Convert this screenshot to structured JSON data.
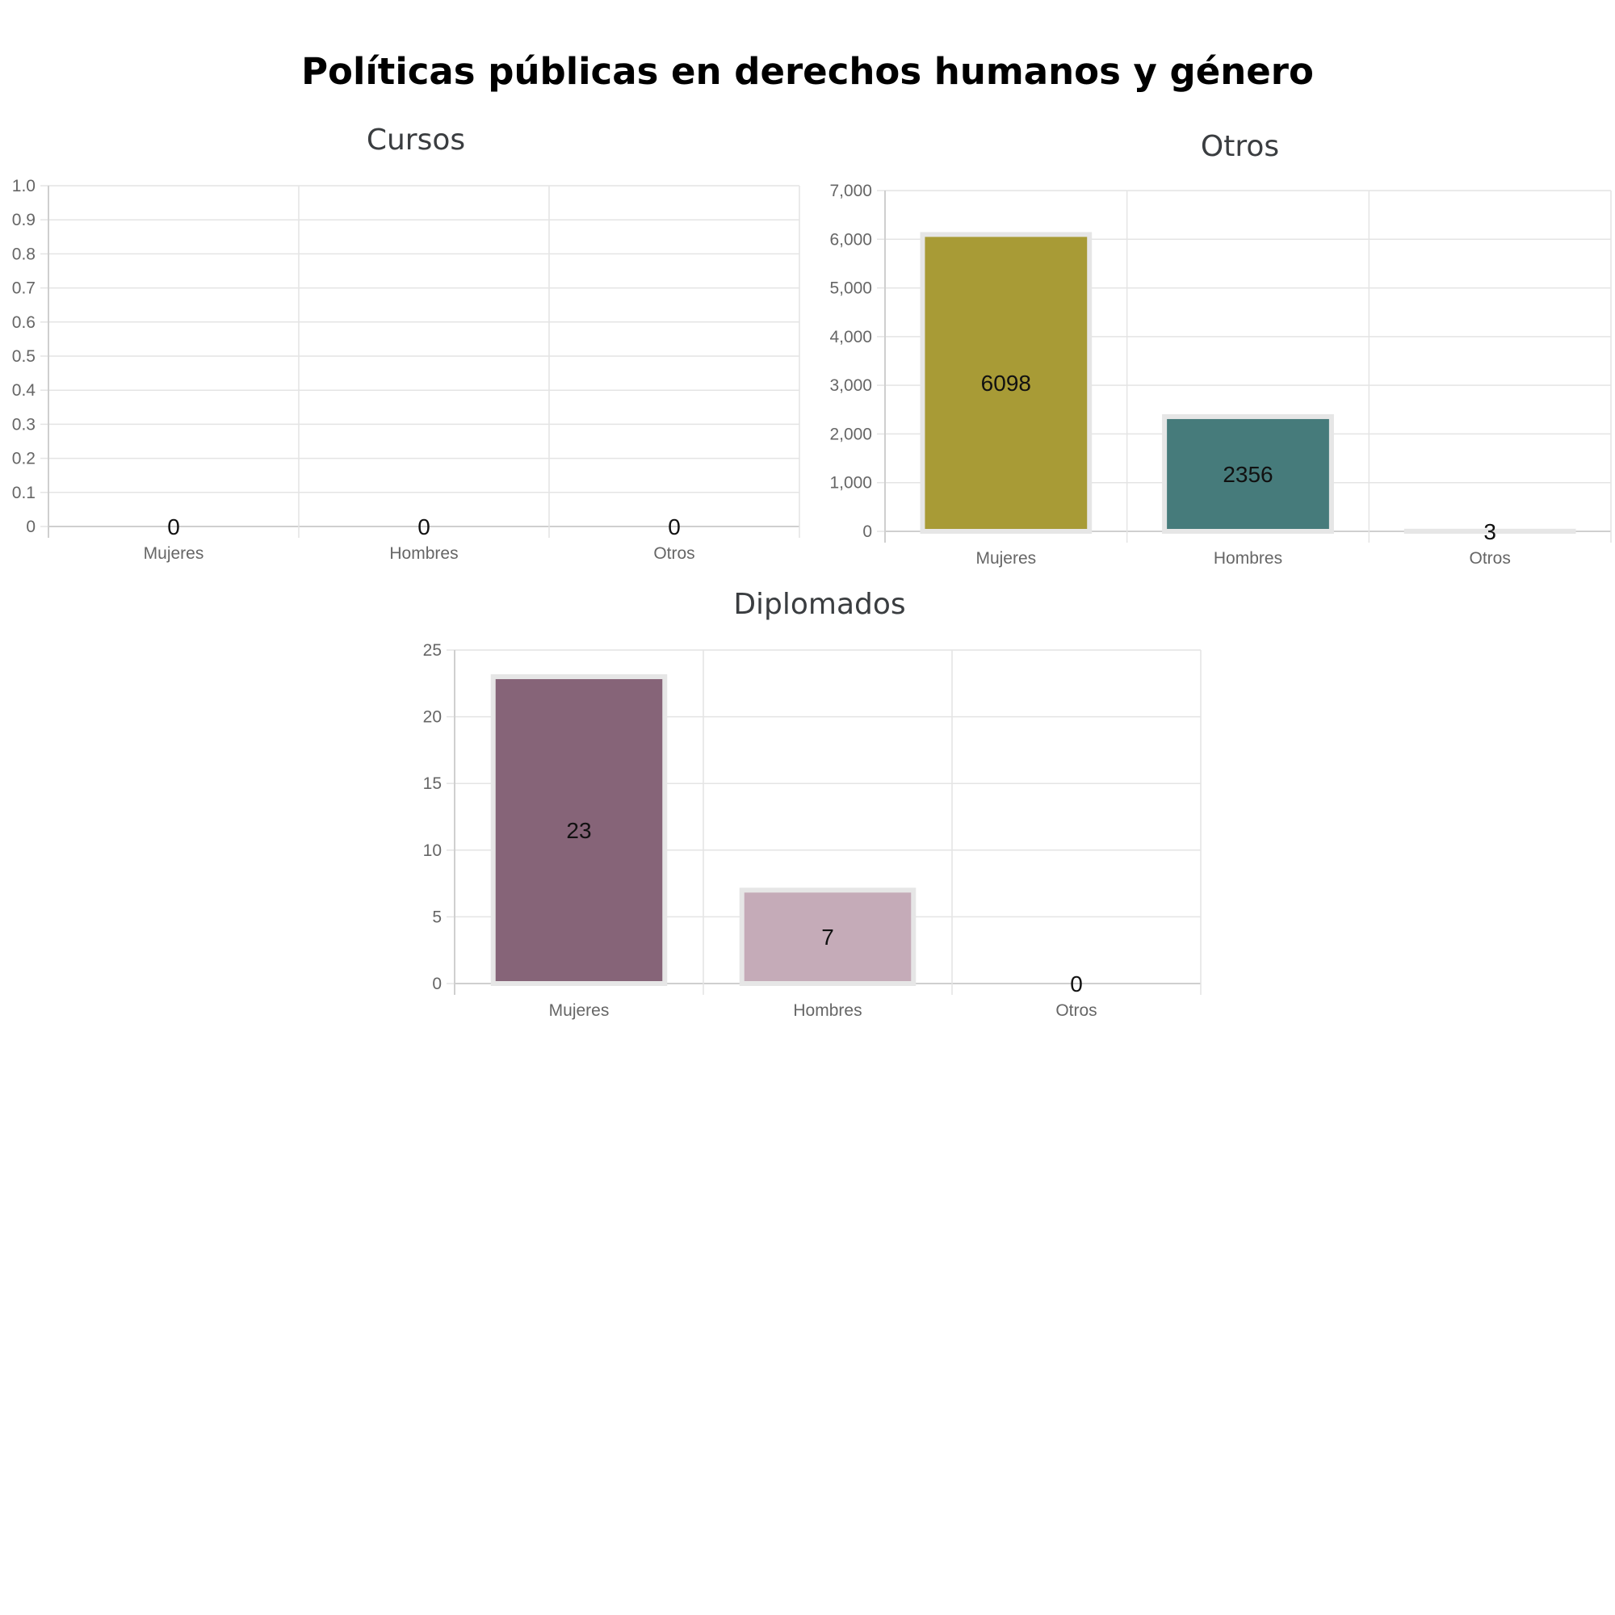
{
  "page": {
    "title": "Políticas públicas en derechos humanos y género"
  },
  "chart_data": [
    {
      "type": "bar",
      "title": "Cursos",
      "categories": [
        "Mujeres",
        "Hombres",
        "Otros"
      ],
      "values": [
        0,
        0,
        0
      ],
      "ylim": [
        0,
        1
      ],
      "yticks": [
        0,
        0.1,
        0.2,
        0.3,
        0.4,
        0.5,
        0.6,
        0.7,
        0.8,
        0.9,
        1.0
      ],
      "ytick_labels": [
        "0",
        "0.1",
        "0.2",
        "0.3",
        "0.4",
        "0.5",
        "0.6",
        "0.7",
        "0.8",
        "0.9",
        "1.0"
      ],
      "data_labels": [
        "0",
        "0",
        "0"
      ],
      "colors": [
        "#a89b36",
        "#467b7b",
        "#cccccc"
      ],
      "grid": true
    },
    {
      "type": "bar",
      "title": "Otros",
      "categories": [
        "Mujeres",
        "Hombres",
        "Otros"
      ],
      "values": [
        6098,
        2356,
        3
      ],
      "ylim": [
        0,
        7000
      ],
      "yticks": [
        0,
        1000,
        2000,
        3000,
        4000,
        5000,
        6000,
        7000
      ],
      "ytick_labels": [
        "0",
        "1,000",
        "2,000",
        "3,000",
        "4,000",
        "5,000",
        "6,000",
        "7,000"
      ],
      "data_labels": [
        "6098",
        "2356",
        "3"
      ],
      "colors": [
        "#a89b36",
        "#467b7b",
        "#9aa0a0"
      ],
      "grid": true
    },
    {
      "type": "bar",
      "title": "Diplomados",
      "categories": [
        "Mujeres",
        "Hombres",
        "Otros"
      ],
      "values": [
        23,
        7,
        0
      ],
      "ylim": [
        0,
        25
      ],
      "yticks": [
        0,
        5,
        10,
        15,
        20,
        25
      ],
      "ytick_labels": [
        "0",
        "5",
        "10",
        "15",
        "20",
        "25"
      ],
      "data_labels": [
        "23",
        "7",
        "0"
      ],
      "colors": [
        "#866478",
        "#c5abb8",
        "#cccccc"
      ],
      "grid": true
    }
  ]
}
